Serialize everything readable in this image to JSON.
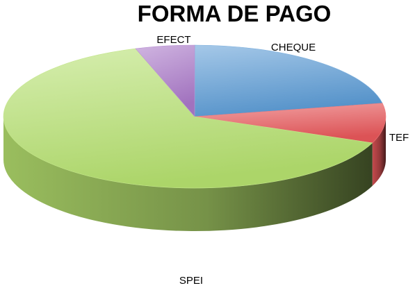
{
  "chart_data": {
    "type": "pie",
    "title": "FORMA DE PAGO",
    "slices": [
      {
        "label": "CHEQUE",
        "value": 22,
        "color": "#5b9bd5"
      },
      {
        "label": "TEF",
        "value": 9,
        "color": "#e8575a"
      },
      {
        "label": "SPEI",
        "value": 64,
        "color": "#b5e06e"
      },
      {
        "label": "EFECT",
        "value": 5,
        "color": "#a978c8"
      }
    ],
    "legend": "none",
    "style": "3d-exploded-none"
  }
}
